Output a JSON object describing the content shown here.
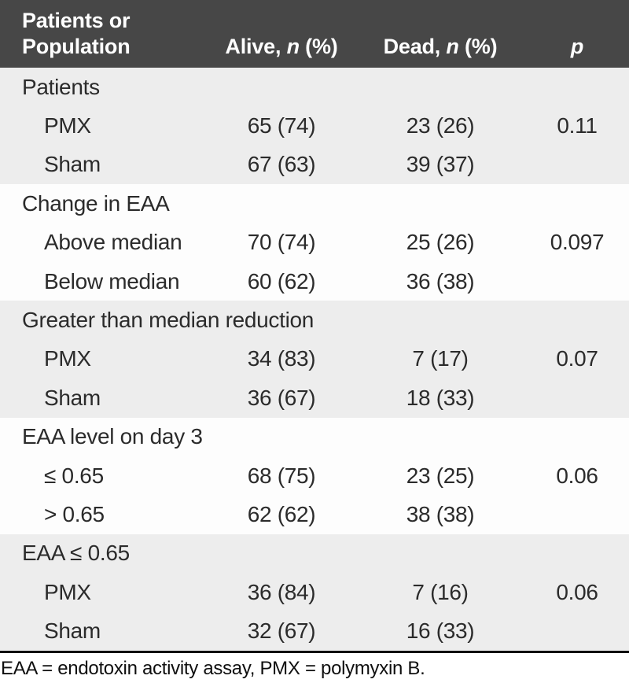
{
  "header": {
    "col1_line1": "Patients or",
    "col1_line2": "Population",
    "alive": {
      "pre": "Alive, ",
      "it": "n",
      "post": " (%)"
    },
    "dead": {
      "pre": "Dead, ",
      "it": "n",
      "post": " (%)"
    },
    "p": "p"
  },
  "sections": [
    {
      "title": "Patients",
      "shade": "gray",
      "rows": [
        {
          "label": "PMX",
          "alive": "65 (74)",
          "dead": "23 (26)",
          "p": "0.11"
        },
        {
          "label": "Sham",
          "alive": "67 (63)",
          "dead": "39 (37)",
          "p": ""
        }
      ]
    },
    {
      "title": "Change in EAA",
      "shade": "white",
      "rows": [
        {
          "label": "Above median",
          "alive": "70 (74)",
          "dead": "25 (26)",
          "p": "0.097"
        },
        {
          "label": "Below median",
          "alive": "60 (62)",
          "dead": "36 (38)",
          "p": ""
        }
      ]
    },
    {
      "title": "Greater than median reduction",
      "shade": "gray",
      "rows": [
        {
          "label": "PMX",
          "alive": "34 (83)",
          "dead": "7 (17)",
          "p": "0.07"
        },
        {
          "label": "Sham",
          "alive": "36 (67)",
          "dead": "18 (33)",
          "p": ""
        }
      ]
    },
    {
      "title": "EAA level on day 3",
      "shade": "white",
      "rows": [
        {
          "label": "≤ 0.65",
          "alive": "68 (75)",
          "dead": "23 (25)",
          "p": "0.06"
        },
        {
          "label": "> 0.65",
          "alive": "62 (62)",
          "dead": "38 (38)",
          "p": ""
        }
      ]
    },
    {
      "title": "EAA ≤ 0.65",
      "shade": "gray",
      "rows": [
        {
          "label": "PMX",
          "alive": "36 (84)",
          "dead": "7 (16)",
          "p": "0.06"
        },
        {
          "label": "Sham",
          "alive": "32 (67)",
          "dead": "16 (33)",
          "p": ""
        }
      ]
    }
  ],
  "footnote": "EAA = endotoxin activity assay, PMX = polymyxin B.",
  "colors": {
    "header_bg": "#474747",
    "header_text": "#ffffff",
    "row_gray": "#ededed",
    "row_white": "#fdfdfd",
    "body_text": "#2b2b2b",
    "rule": "#000000"
  }
}
